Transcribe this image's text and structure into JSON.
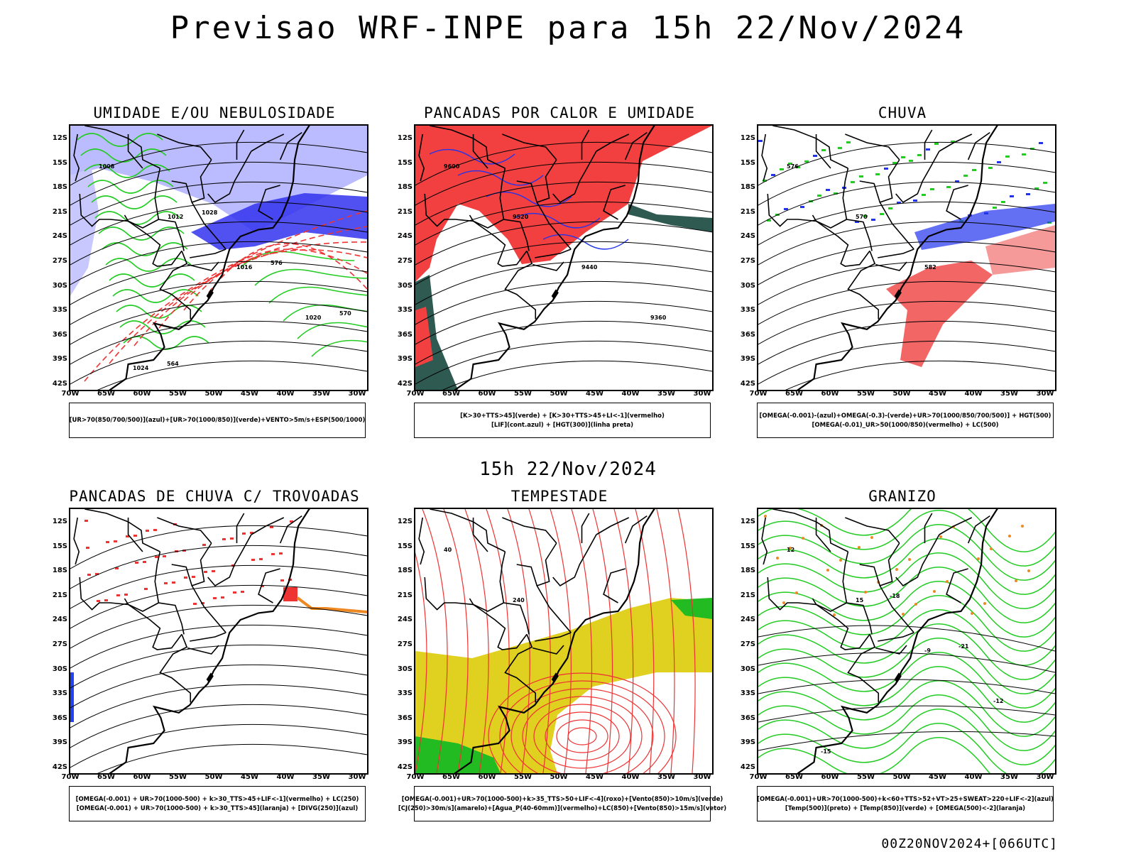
{
  "title": "Previsao WRF-INPE  para 15h 22/Nov/2024",
  "subtitle": "15h 22/Nov/2024",
  "footer": "00Z20NOV2024+[066UTC]",
  "lat_labels": [
    "12S",
    "15S",
    "18S",
    "21S",
    "24S",
    "27S",
    "30S",
    "33S",
    "36S",
    "39S",
    "42S"
  ],
  "lon_labels": [
    "70W",
    "65W",
    "60W",
    "55W",
    "50W",
    "45W",
    "40W",
    "35W",
    "30W"
  ],
  "panels": [
    {
      "title": "UMIDADE E/OU NEBULOSIDADE",
      "legend": [
        "[UR>70(850/700/500)](azul)+[UR>70(1000/850)](verde)+VENTO>5m/s+ESP(500/1000)"
      ],
      "contour_labels": [
        "1008",
        "1012",
        "1016",
        "1020",
        "1024",
        "1028",
        "576",
        "570",
        "564"
      ],
      "colors": {
        "blue": "#3333ee",
        "lightblue": "#b4b4ff",
        "green": "#22cc22",
        "red": "#ee3333"
      }
    },
    {
      "title": "PANCADAS POR CALOR E UMIDADE",
      "legend": [
        "[K>30+TTS>45](verde) + [K>30+TTS>45+LI<-1](vermelho)",
        "[LIF](cont.azul) + [HGT(300)](linha preta)"
      ],
      "contour_labels": [
        "9600",
        "9520",
        "9440",
        "9360"
      ],
      "colors": {
        "red": "#f24040",
        "darkgreen": "#2f5a52",
        "blue": "#2233ee"
      }
    },
    {
      "title": "CHUVA",
      "legend": [
        "[OMEGA(-0.001)-(azul)+OMEGA(-0.3)-(verde)+UR>70(1000/850/700/500)] + HGT(500)",
        "[OMEGA(-0.01)_UR>50(1000/850)(vermelho) + LC(500)"
      ],
      "contour_labels": [
        "576",
        "570",
        "582"
      ],
      "colors": {
        "red": "#ee3333",
        "blue": "#2233ee",
        "green": "#22cc22"
      }
    },
    {
      "title": "PANCADAS DE CHUVA C/ TROVOADAS",
      "legend": [
        "[OMEGA(-0.001) + UR>70(1000-500) + k>30_TTS>45+LIF<-1](vermelho) + LC(250)",
        "[OMEGA(-0.001) + UR>70(1000-500) + k>30_TTS>45](laranja) + [DIVG(250)](azul)"
      ],
      "contour_labels": [],
      "colors": {
        "red": "#ee3333",
        "orange": "#ee8822",
        "blue": "#2244ee"
      }
    },
    {
      "title": "TEMPESTADE",
      "legend": [
        "[OMEGA(-0.001)+UR>70(1000-500)+k>35_TTS>50+LIF<-4](roxo)+[Vento(850)>10m/s](verde)",
        "[CJ(250)>30m/s](amarelo)+[Agua_P(40-60mm)](vermelho)+LC(850)+[Vento(850)>15m/s](vetor)"
      ],
      "contour_labels": [
        "40",
        "240"
      ],
      "colors": {
        "yellow": "#e0d020",
        "green": "#22bb22",
        "red": "#ee3333"
      }
    },
    {
      "title": "GRANIZO",
      "legend": [
        "[OMEGA(-0.001)+UR>70(1000-500)+k<60+TTS>52+VT>25+SWEAT>220+LIF<-2](azul)",
        "[Temp(500)](preto) + [Temp(850)](verde) + [OMEGA(500)<-2](laranja)"
      ],
      "contour_labels": [
        "12",
        "15",
        "-9",
        "-12",
        "-15",
        "-18",
        "-21"
      ],
      "colors": {
        "green": "#22cc22",
        "orange": "#ee8822"
      }
    }
  ]
}
